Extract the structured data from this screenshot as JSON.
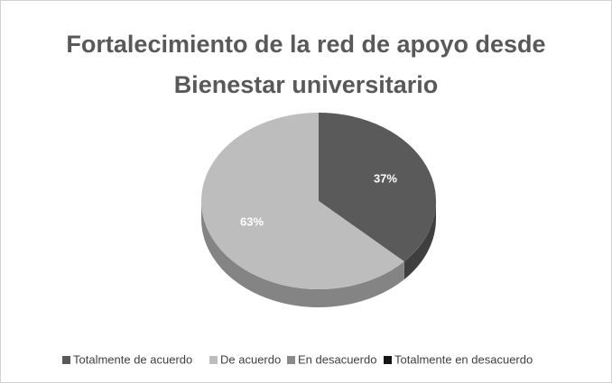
{
  "chart_data": {
    "type": "pie",
    "title": "Fortalecimiento de la red de apoyo desde Bienestar universitario",
    "categories": [
      "Totalmente de acuerdo",
      "De acuerdo",
      "En desacuerdo",
      "Totalmente en desacuerdo"
    ],
    "values": [
      37,
      63,
      0,
      0
    ],
    "value_labels": [
      "37%",
      "63%",
      null,
      null
    ],
    "colors": [
      "#5a5a5a",
      "#bdbdbd",
      "#8a8a8a",
      "#151515"
    ],
    "legend": "bottom"
  }
}
